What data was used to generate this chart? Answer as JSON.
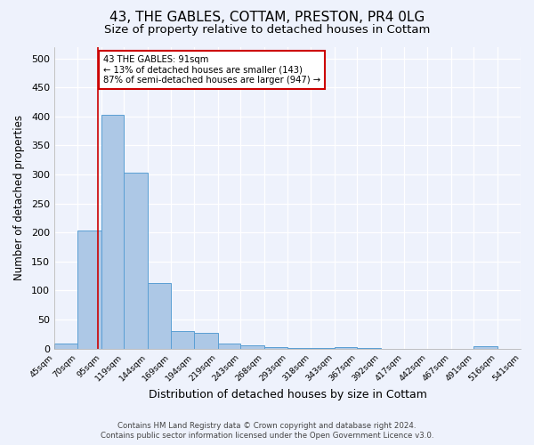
{
  "title1": "43, THE GABLES, COTTAM, PRESTON, PR4 0LG",
  "title2": "Size of property relative to detached houses in Cottam",
  "xlabel": "Distribution of detached houses by size in Cottam",
  "ylabel": "Number of detached properties",
  "footnote1": "Contains HM Land Registry data © Crown copyright and database right 2024.",
  "footnote2": "Contains public sector information licensed under the Open Government Licence v3.0.",
  "bin_edges": [
    45,
    70,
    95,
    119,
    144,
    169,
    194,
    219,
    243,
    268,
    293,
    318,
    343,
    367,
    392,
    417,
    442,
    467,
    491,
    516,
    541
  ],
  "bin_labels": [
    "45sqm",
    "70sqm",
    "95sqm",
    "119sqm",
    "144sqm",
    "169sqm",
    "194sqm",
    "219sqm",
    "243sqm",
    "268sqm",
    "293sqm",
    "318sqm",
    "343sqm",
    "367sqm",
    "392sqm",
    "417sqm",
    "442sqm",
    "467sqm",
    "491sqm",
    "516sqm",
    "541sqm"
  ],
  "bar_heights": [
    8,
    204,
    403,
    303,
    113,
    30,
    27,
    9,
    6,
    2,
    1,
    1,
    3,
    1,
    0,
    0,
    0,
    0,
    4,
    0
  ],
  "bar_color": "#adc8e6",
  "bar_edge_color": "#5a9fd4",
  "property_sqm": 91,
  "red_line_color": "#cc0000",
  "annotation_text": "43 THE GABLES: 91sqm\n← 13% of detached houses are smaller (143)\n87% of semi-detached houses are larger (947) →",
  "annotation_box_color": "#ffffff",
  "annotation_box_edge": "#cc0000",
  "ylim": [
    0,
    520
  ],
  "yticks": [
    0,
    50,
    100,
    150,
    200,
    250,
    300,
    350,
    400,
    450,
    500
  ],
  "bg_color": "#eef2fc",
  "grid_color": "#ffffff",
  "title1_fontsize": 11,
  "title2_fontsize": 9.5,
  "xlabel_fontsize": 9,
  "ylabel_fontsize": 8.5,
  "footnote_fontsize": 6.2,
  "footnote_color": "#444444"
}
